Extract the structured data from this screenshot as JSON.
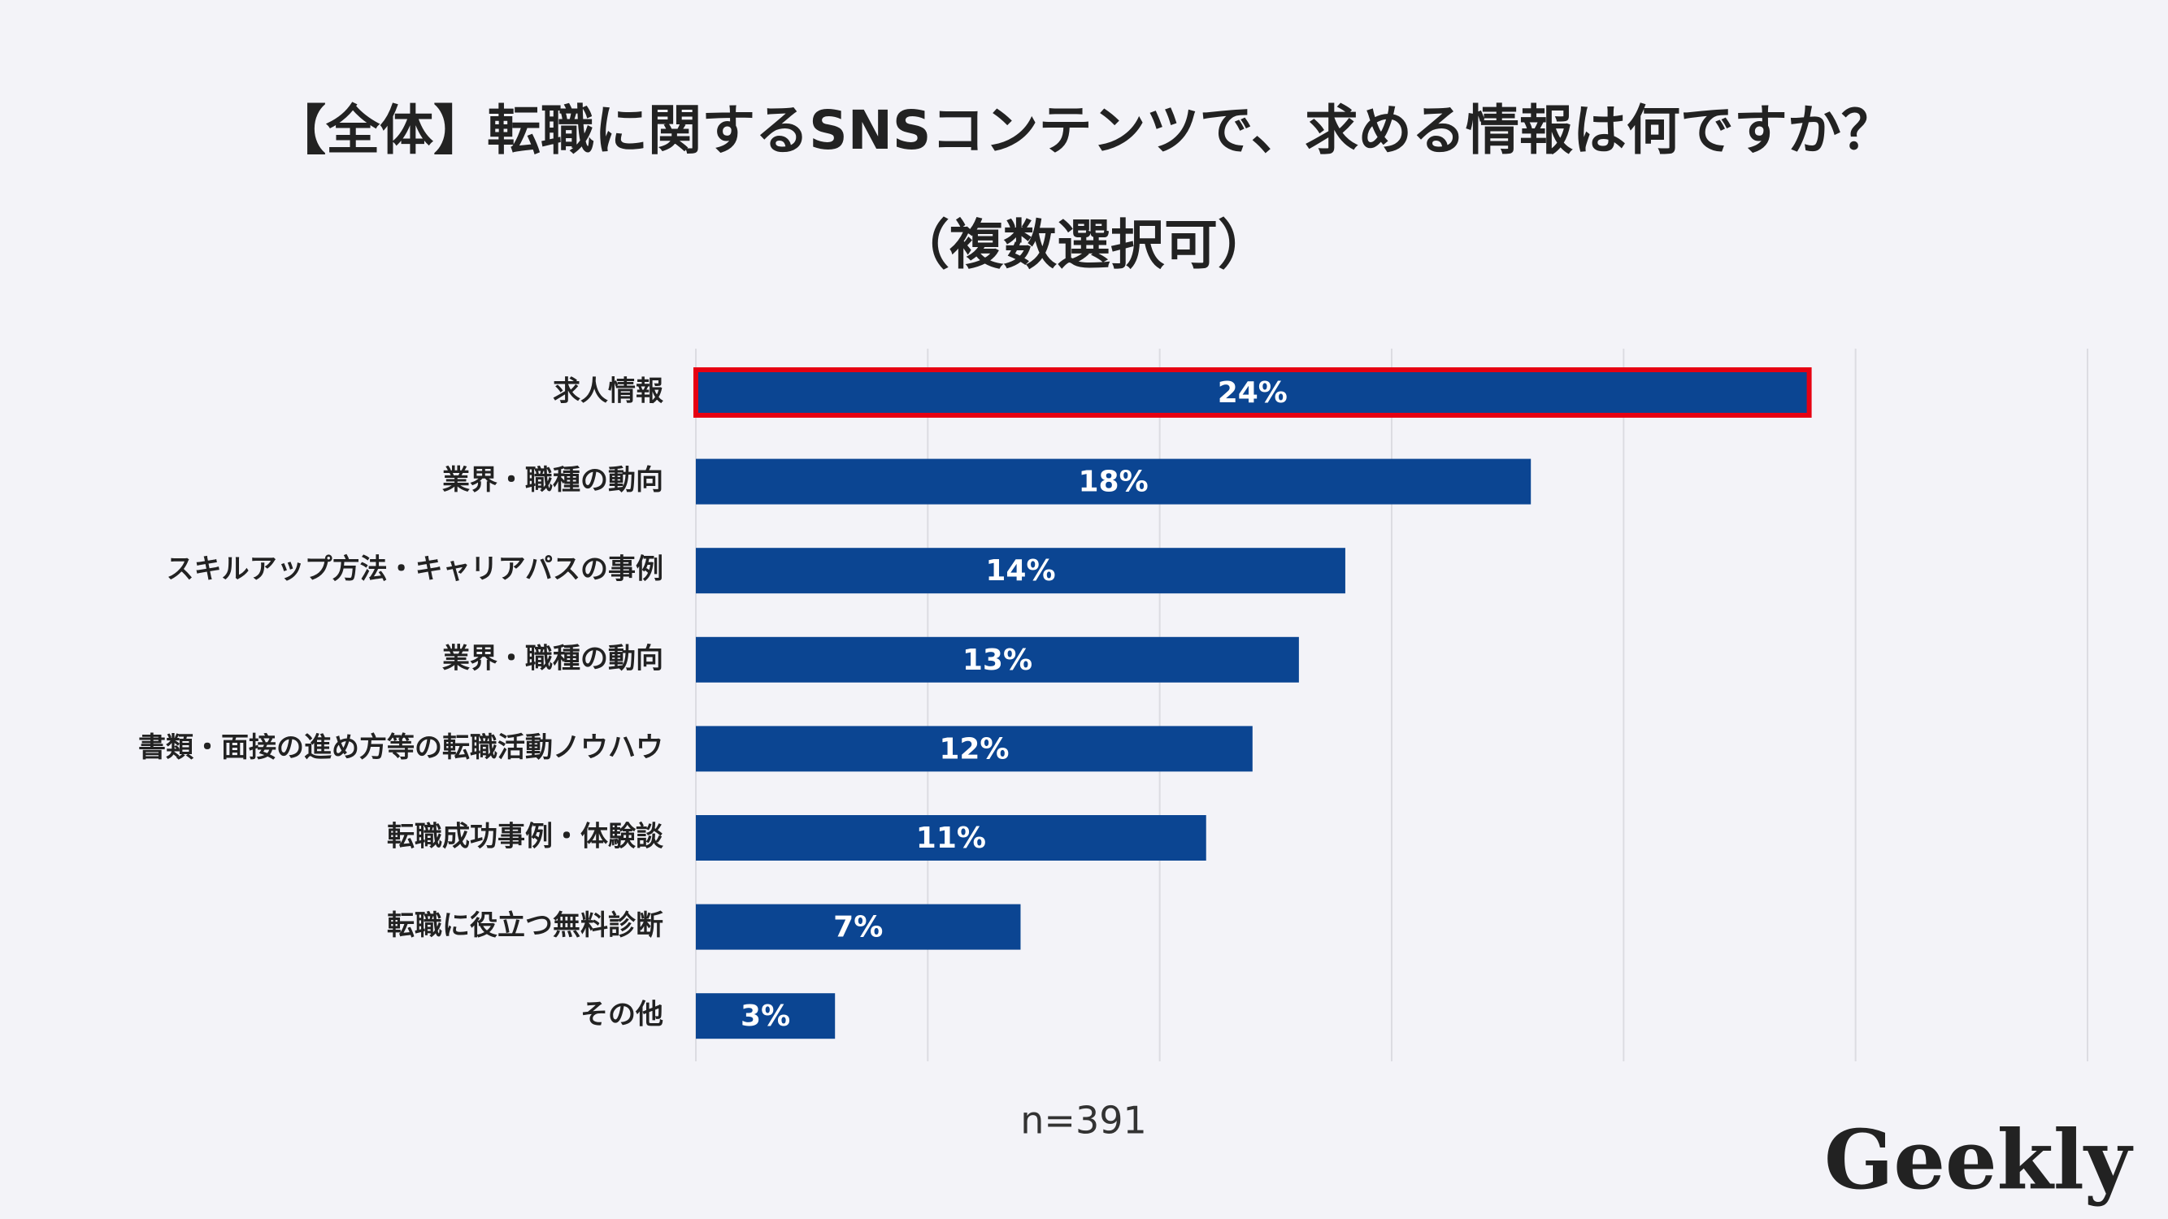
{
  "chart_data": {
    "type": "hbar",
    "title": "【全体】転職に関するSNSコンテンツで、求める情報は何ですか？",
    "subtitle": "（複数選択可）",
    "categories": [
      "求人情報",
      "業界・職種の動向",
      "スキルアップ方法・キャリアパスの事例",
      "業界・職種の動向",
      "書類・面接の進め方等の転職活動ノウハウ",
      "転職成功事例・体験談",
      "転職に役立つ無料診断",
      "その他"
    ],
    "values": [
      24,
      18,
      14,
      13,
      12,
      11,
      7,
      3
    ],
    "value_labels": [
      "24%",
      "18%",
      "14%",
      "13%",
      "12%",
      "11%",
      "7%",
      "3%"
    ],
    "color": "#0b4592",
    "highlight_index": 0,
    "highlight_color": "#e60012",
    "xlim": [
      0,
      30
    ],
    "xticks": [
      0,
      5,
      10,
      15,
      20,
      25,
      30
    ],
    "grid": true,
    "note": "n=391",
    "brand": "Geekly"
  }
}
